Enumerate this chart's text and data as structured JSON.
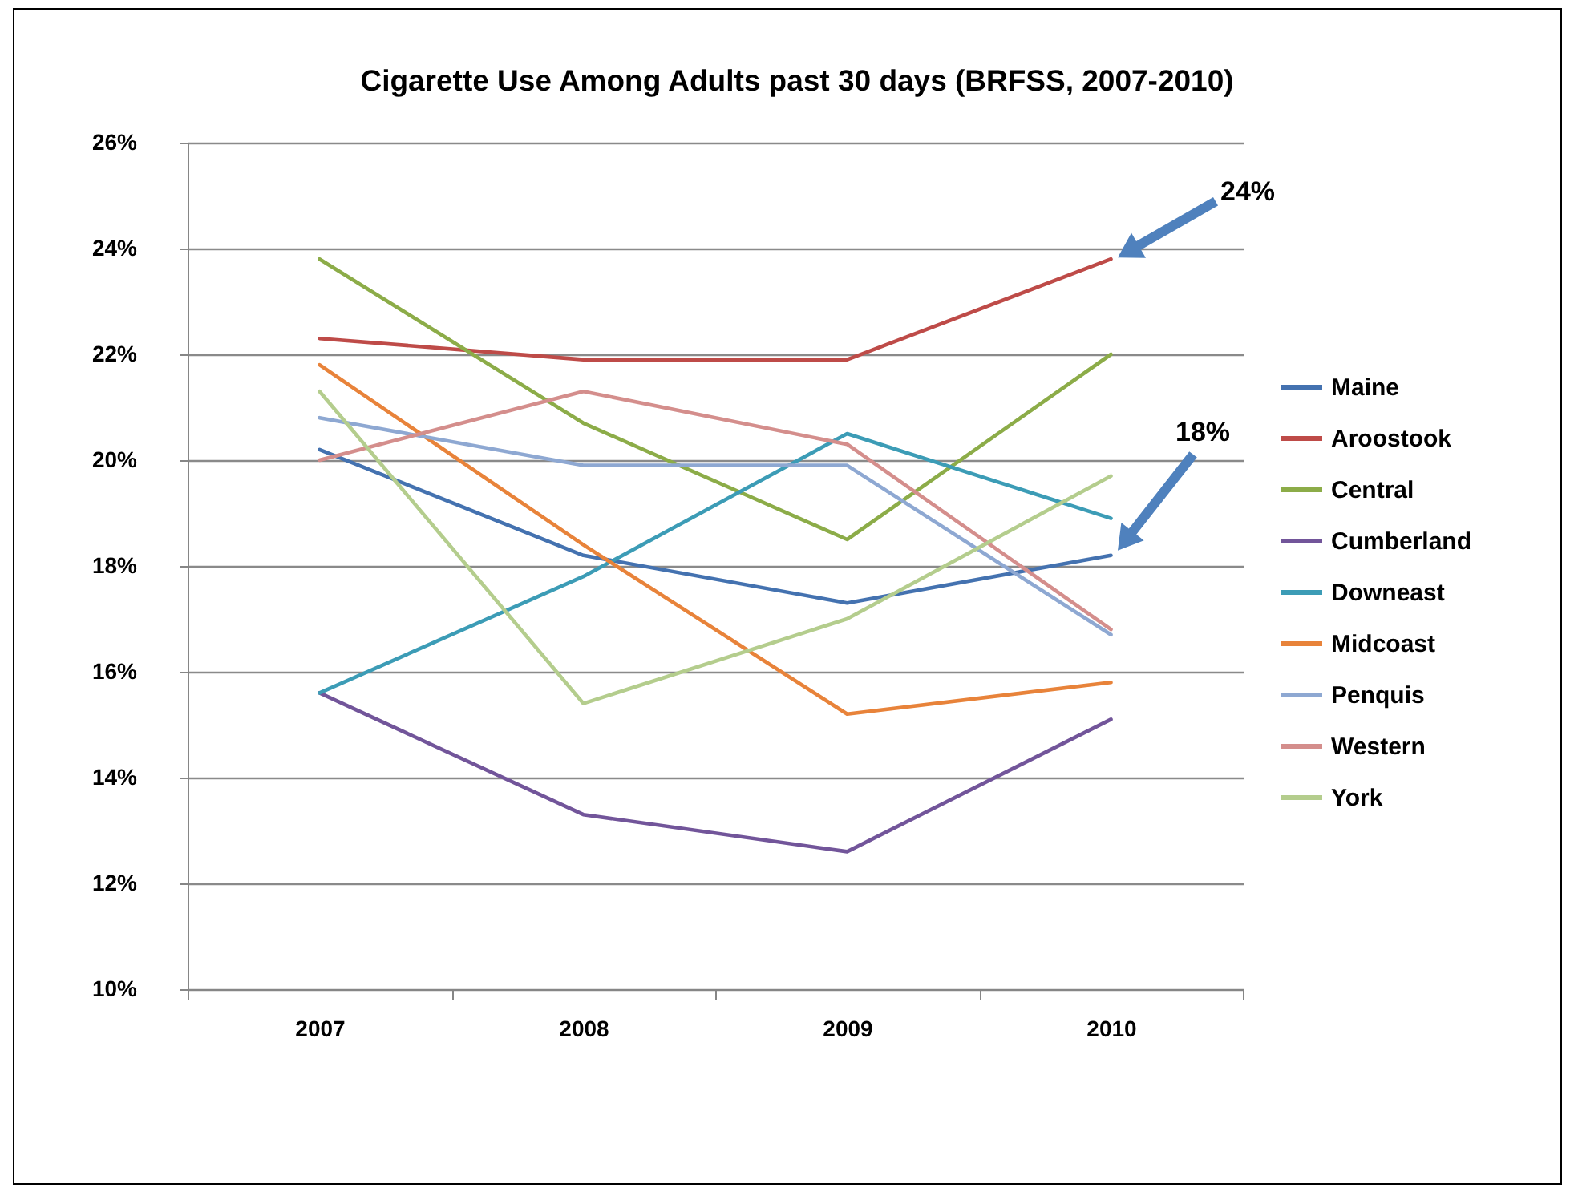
{
  "chart_data": {
    "type": "line",
    "title": "Cigarette Use Among Adults past 30 days (BRFSS, 2007-2010)",
    "categories": [
      "2007",
      "2008",
      "2009",
      "2010"
    ],
    "series": [
      {
        "name": "Maine",
        "color": "#4472b0",
        "values": [
          20.2,
          18.2,
          17.3,
          18.2
        ]
      },
      {
        "name": "Aroostook",
        "color": "#be4b48",
        "values": [
          22.3,
          21.9,
          21.9,
          23.8
        ]
      },
      {
        "name": "Central",
        "color": "#8cac48",
        "values": [
          23.8,
          20.7,
          18.5,
          22.0
        ]
      },
      {
        "name": "Cumberland",
        "color": "#72559a",
        "values": [
          15.6,
          13.3,
          12.6,
          15.1
        ]
      },
      {
        "name": "Downeast",
        "color": "#3c9cb6",
        "values": [
          15.6,
          17.8,
          20.5,
          18.9
        ]
      },
      {
        "name": "Midcoast",
        "color": "#e8833a",
        "values": [
          21.8,
          18.4,
          15.2,
          15.8
        ]
      },
      {
        "name": "Penquis",
        "color": "#8ea8d2",
        "values": [
          20.8,
          19.9,
          19.9,
          16.7
        ]
      },
      {
        "name": "Western",
        "color": "#d48e8c",
        "values": [
          20.0,
          21.3,
          20.3,
          16.8
        ]
      },
      {
        "name": "York",
        "color": "#b4cd8d",
        "values": [
          21.3,
          15.4,
          17.0,
          19.7
        ]
      }
    ],
    "ylim": [
      10,
      26
    ],
    "yticks": [
      {
        "value": 10,
        "label": "10%"
      },
      {
        "value": 12,
        "label": "12%"
      },
      {
        "value": 14,
        "label": "14%"
      },
      {
        "value": 16,
        "label": "16%"
      },
      {
        "value": 18,
        "label": "18%"
      },
      {
        "value": 20,
        "label": "20%"
      },
      {
        "value": 22,
        "label": "22%"
      },
      {
        "value": 24,
        "label": "24%"
      },
      {
        "value": 26,
        "label": "26%"
      }
    ],
    "grid": "y",
    "legend": "right",
    "annotations": [
      "24%",
      "18%"
    ]
  }
}
